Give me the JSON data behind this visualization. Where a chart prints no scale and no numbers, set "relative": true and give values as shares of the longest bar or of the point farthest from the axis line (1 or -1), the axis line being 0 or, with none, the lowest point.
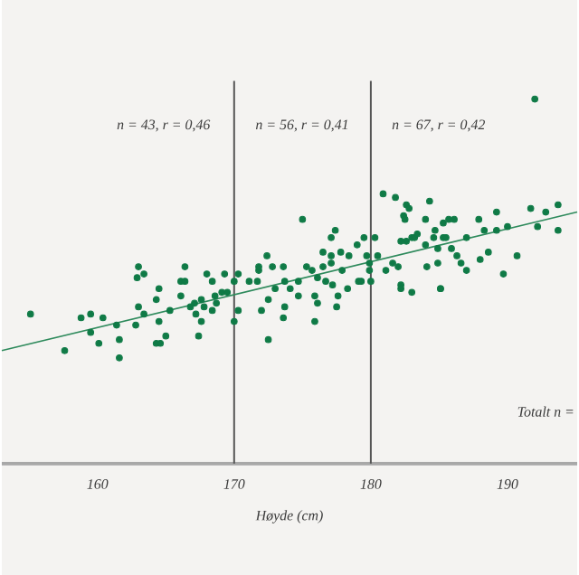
{
  "chart_data": {
    "type": "scatter",
    "relative": true,
    "xlabel": "Høyde (cm)",
    "tick_labels": "x",
    "xlim": [
      153,
      195.1
    ],
    "xticks": [
      160,
      170,
      180,
      190
    ],
    "ylim": [
      0,
      1.05
    ],
    "ref_lines": [
      {
        "axis": "x",
        "value": 170,
        "color": "#555555"
      },
      {
        "axis": "x",
        "value": 180,
        "color": "#555555"
      }
    ],
    "annotations": [
      "n = 43, r = 0,46",
      "n = 56, r = 0,41",
      "n = 67, r = 0,42",
      "Totalt n ="
    ],
    "series": [
      {
        "marker": "circle",
        "color": "#0f7a46",
        "x": [
          155.1,
          158.8,
          159.5,
          160.4,
          163.0,
          163.4,
          162.9,
          164.5,
          164.3,
          163.0,
          166.1,
          166.4,
          166.4,
          166.1,
          167.1,
          167.6,
          168.0,
          168.4,
          168.6,
          168.7,
          169.1,
          169.3,
          169.5,
          170.3,
          170.0,
          171.1,
          171.7,
          171.8,
          172.4,
          172.8,
          173.6,
          171.8,
          173.7,
          172.5,
          173.0,
          173.7,
          157.6,
          159.5,
          160.1,
          161.4,
          161.6,
          161.6,
          162.8,
          163.4,
          164.5,
          164.3,
          164.6,
          165.0,
          165.3,
          166.8,
          167.2,
          167.4,
          167.6,
          167.8,
          168.4,
          170.0,
          170.3,
          172.0,
          172.5,
          173.6,
          192.0,
          175.0,
          174.7,
          174.1,
          175.3,
          175.7,
          176.1,
          176.5,
          176.5,
          176.7,
          177.1,
          177.1,
          177.4,
          177.1,
          177.2,
          177.8,
          177.9,
          178.4,
          179.0,
          179.1,
          179.3,
          179.5,
          179.7,
          179.9,
          179.9,
          180.0,
          180.3,
          180.5,
          180.9,
          181.1,
          181.6,
          181.8,
          182.0,
          182.2,
          182.2,
          182.4,
          182.5,
          182.6,
          182.8,
          182.6,
          183.0,
          183.2,
          183.4,
          184.0,
          184.0,
          184.1,
          184.3,
          184.6,
          184.7,
          184.9,
          184.9,
          185.1,
          185.3,
          185.3,
          185.5,
          185.7,
          185.9,
          186.1,
          186.3,
          186.6,
          187.0,
          187.0,
          187.9,
          188.0,
          188.3,
          188.6,
          189.2,
          189.2,
          189.7,
          190.0,
          190.7,
          191.7,
          192.2,
          192.8,
          193.7,
          193.7,
          174.7,
          175.9,
          176.1,
          175.9,
          177.5,
          177.6,
          178.3,
          182.2,
          183.0,
          185.1
        ],
        "values": [
          0.41,
          0.4,
          0.41,
          0.4,
          0.54,
          0.52,
          0.51,
          0.48,
          0.45,
          0.43,
          0.5,
          0.54,
          0.5,
          0.46,
          0.44,
          0.45,
          0.52,
          0.5,
          0.46,
          0.44,
          0.47,
          0.52,
          0.47,
          0.52,
          0.5,
          0.5,
          0.5,
          0.53,
          0.57,
          0.54,
          0.54,
          0.54,
          0.5,
          0.45,
          0.48,
          0.43,
          0.31,
          0.36,
          0.33,
          0.38,
          0.34,
          0.29,
          0.38,
          0.41,
          0.39,
          0.33,
          0.33,
          0.35,
          0.42,
          0.43,
          0.41,
          0.35,
          0.39,
          0.43,
          0.42,
          0.39,
          0.42,
          0.42,
          0.34,
          0.4,
          1.0,
          0.67,
          0.5,
          0.48,
          0.54,
          0.53,
          0.51,
          0.54,
          0.58,
          0.5,
          0.57,
          0.55,
          0.64,
          0.62,
          0.49,
          0.58,
          0.53,
          0.57,
          0.6,
          0.5,
          0.5,
          0.62,
          0.57,
          0.55,
          0.53,
          0.5,
          0.62,
          0.57,
          0.74,
          0.53,
          0.55,
          0.73,
          0.54,
          0.61,
          0.49,
          0.68,
          0.67,
          0.71,
          0.7,
          0.61,
          0.62,
          0.62,
          0.63,
          0.6,
          0.67,
          0.54,
          0.72,
          0.62,
          0.64,
          0.59,
          0.55,
          0.48,
          0.66,
          0.62,
          0.62,
          0.67,
          0.59,
          0.67,
          0.57,
          0.55,
          0.53,
          0.62,
          0.67,
          0.56,
          0.64,
          0.58,
          0.69,
          0.64,
          0.52,
          0.65,
          0.57,
          0.7,
          0.65,
          0.69,
          0.64,
          0.71,
          0.46,
          0.46,
          0.44,
          0.39,
          0.43,
          0.46,
          0.48,
          0.48,
          0.47,
          0.48
        ]
      },
      {
        "type": "line",
        "color": "#2e8a5c",
        "x": [
          153,
          195.1
        ],
        "values": [
          0.31,
          0.69
        ]
      }
    ]
  }
}
